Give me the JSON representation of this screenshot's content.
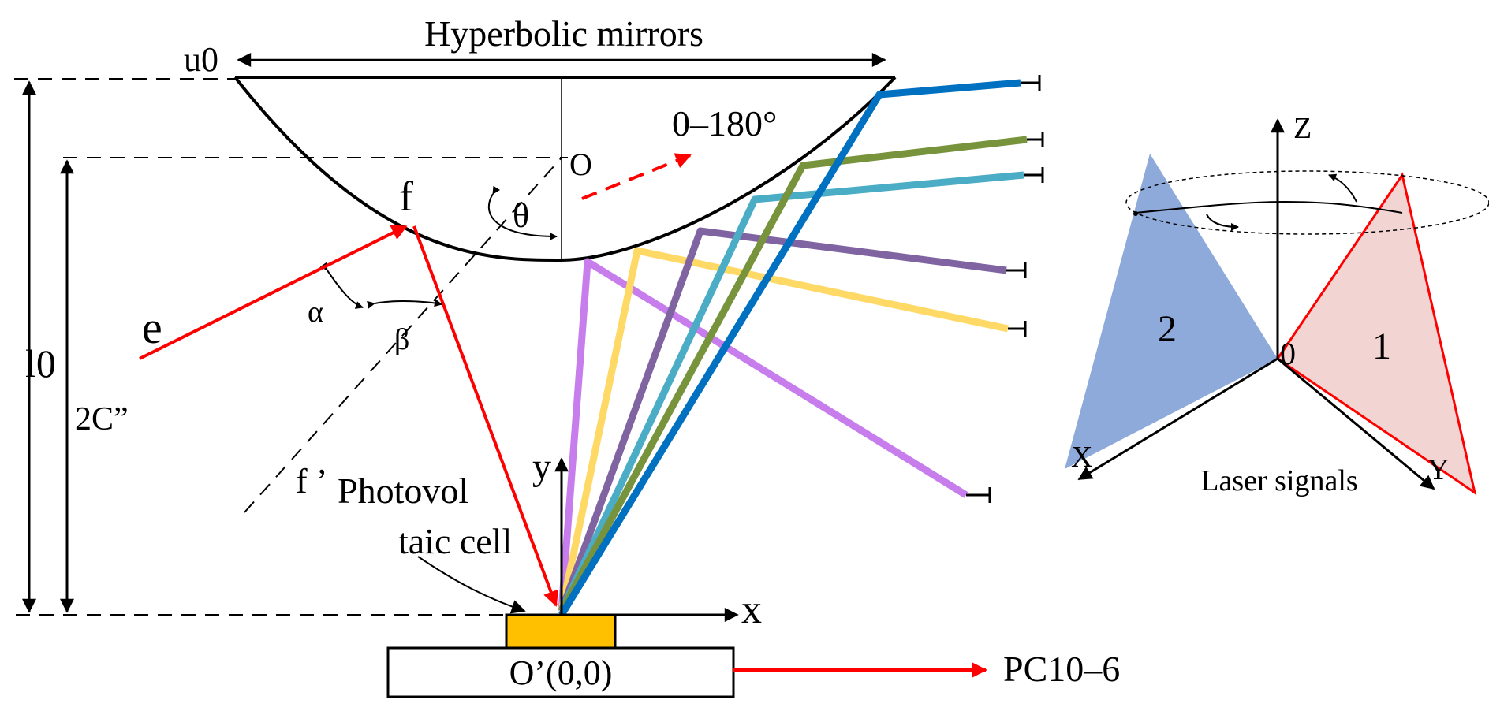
{
  "labels": {
    "title": "Hyperbolic mirrors",
    "u0": "u0",
    "l0": "l0",
    "two_c": "2C”",
    "origin_o": "O",
    "focus_f": "f",
    "focus_f_prime": "f ’",
    "theta": "θ",
    "alpha": "α",
    "beta": "β",
    "e": "e",
    "angle_range": "0–180°",
    "pv_line1": "Photovol",
    "pv_line2": "taic cell",
    "y_axis": "y",
    "x_axis": "x",
    "base": "O’(0,0)",
    "pc": "PC10–6",
    "z_axis": "Z",
    "x3d": "X",
    "y3d": "Y",
    "origin3d": "0",
    "plane1": "1",
    "plane2": "2",
    "laser": "Laser signals"
  },
  "colors": {
    "ray_red": "#ff0000",
    "pv_cell": "#ffc000",
    "beam_blue": "#0070c0",
    "beam_green": "#77933c",
    "beam_cyan": "#4bacc6",
    "beam_purple": "#8064a2",
    "beam_yellow": "#ffd966",
    "beam_violet": "#c77dec",
    "plane_blue": "#8eaadb",
    "plane_pink": "#f2d4d2"
  }
}
